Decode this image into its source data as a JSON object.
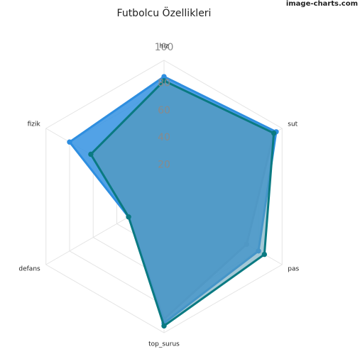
{
  "watermark": "image-charts.com",
  "chart_data": {
    "type": "radar",
    "title": "Futbolcu Özellikleri",
    "axes": [
      "hız",
      "sut",
      "pas",
      "top_surus",
      "defans",
      "fizik"
    ],
    "r_ticks": [
      20,
      40,
      60,
      80,
      100
    ],
    "r_tick_labels": [
      "20",
      "40",
      "60",
      "80",
      "100"
    ],
    "rlim": [
      0,
      100
    ],
    "grid": true,
    "series": [
      {
        "values": [
          85,
          93,
          70,
          90,
          30,
          62
        ],
        "color": "#999999",
        "fill": "#bdbdbd",
        "fill_opacity": 0.85
      },
      {
        "values": [
          88,
          95,
          80,
          93,
          30,
          80
        ],
        "color": "#2e8ee0",
        "fill": "#3a95e3",
        "fill_opacity": 0.88
      },
      {
        "values": [
          85,
          93,
          85,
          95,
          30,
          62
        ],
        "color": "#0a7a82",
        "fill": "#5a9ab5",
        "fill_opacity": 0.55
      }
    ]
  }
}
